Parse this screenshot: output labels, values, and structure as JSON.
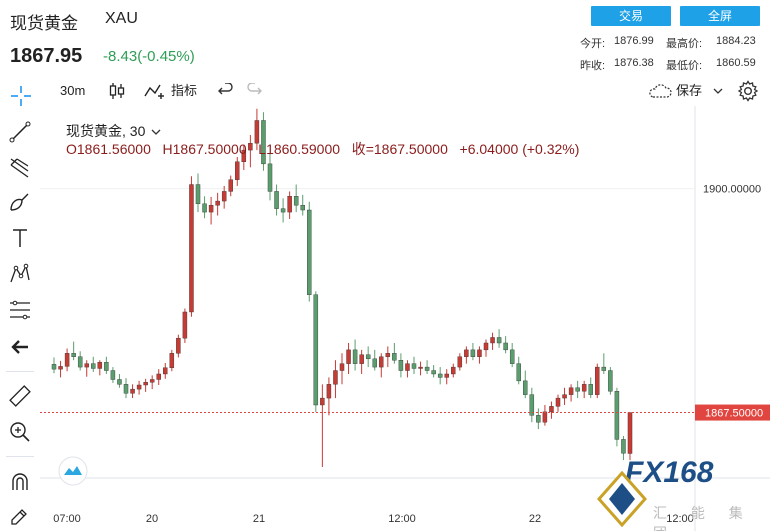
{
  "header": {
    "instrument_name": "现货黄金",
    "instrument_code": "XAU",
    "last_price": "1867.95",
    "change": "-8.43(-0.45%)",
    "trade_button": "交易",
    "fullscreen_button": "全屏",
    "stats": {
      "open_label": "今开:",
      "open": "1876.99",
      "high_label": "最高价:",
      "high": "1884.23",
      "prev_close_label": "昨收:",
      "prev_close": "1876.38",
      "low_label": "最低价:",
      "low": "1860.59"
    }
  },
  "toolbar": {
    "interval": "30m",
    "indicators_label": "指标",
    "save_label": "保存"
  },
  "chart_legend": {
    "title": "现货黄金, 30",
    "open": "O1861.56000",
    "high": "H1867.50000",
    "low": "L1860.59000",
    "close": "收=1867.50000",
    "change": "+6.04000 (+0.32%)"
  },
  "watermark": {
    "brand": "FX168",
    "chinese": "汇 能 集 团"
  },
  "colors": {
    "up": "#c83a34",
    "down": "#5b9e6e",
    "accent_button": "#1ea1e6",
    "price_label_bg": "#e0453f"
  },
  "chart_data": {
    "type": "candlestick",
    "instrument": "XAU",
    "timeframe": "30",
    "x_ticks": [
      "07:00",
      "20",
      "21",
      "12:00",
      "22",
      "12:00"
    ],
    "y_ticks": [
      1900.0
    ],
    "y_tick_labels": [
      "1900.00000"
    ],
    "current_price": 1867.5,
    "current_price_label": "1867.50000",
    "ylim": [
      1858,
      1912
    ],
    "candles": [
      [
        1874.5,
        1875.5,
        1873.2,
        1873.8
      ],
      [
        1873.8,
        1875.0,
        1872.6,
        1874.2
      ],
      [
        1874.2,
        1876.8,
        1873.5,
        1876.1
      ],
      [
        1876.1,
        1877.8,
        1875.1,
        1875.6
      ],
      [
        1875.6,
        1876.4,
        1873.6,
        1874.1
      ],
      [
        1874.1,
        1875.1,
        1872.7,
        1874.6
      ],
      [
        1874.6,
        1875.6,
        1873.4,
        1873.9
      ],
      [
        1873.9,
        1875.1,
        1872.9,
        1874.8
      ],
      [
        1874.8,
        1875.6,
        1873.1,
        1873.6
      ],
      [
        1873.6,
        1874.1,
        1871.8,
        1872.3
      ],
      [
        1872.3,
        1873.1,
        1871.1,
        1871.6
      ],
      [
        1871.6,
        1872.5,
        1869.6,
        1870.3
      ],
      [
        1870.3,
        1871.6,
        1869.6,
        1870.9
      ],
      [
        1870.9,
        1872.1,
        1870.1,
        1871.5
      ],
      [
        1871.5,
        1872.4,
        1870.5,
        1871.9
      ],
      [
        1871.9,
        1872.9,
        1870.9,
        1872.3
      ],
      [
        1872.3,
        1873.8,
        1871.5,
        1873.1
      ],
      [
        1873.1,
        1874.7,
        1872.4,
        1874.0
      ],
      [
        1874.0,
        1876.6,
        1873.5,
        1876.1
      ],
      [
        1876.1,
        1878.8,
        1875.5,
        1878.3
      ],
      [
        1878.3,
        1882.6,
        1877.6,
        1882.1
      ],
      [
        1882.1,
        1901.8,
        1881.4,
        1900.6
      ],
      [
        1900.6,
        1902.2,
        1896.6,
        1897.8
      ],
      [
        1897.8,
        1898.9,
        1895.7,
        1896.6
      ],
      [
        1896.6,
        1898.8,
        1894.8,
        1897.6
      ],
      [
        1897.6,
        1899.4,
        1896.1,
        1898.2
      ],
      [
        1898.2,
        1900.4,
        1897.1,
        1899.6
      ],
      [
        1899.6,
        1901.9,
        1898.9,
        1901.3
      ],
      [
        1901.3,
        1904.6,
        1900.4,
        1903.9
      ],
      [
        1903.9,
        1906.4,
        1902.7,
        1905.6
      ],
      [
        1905.6,
        1907.8,
        1903.1,
        1906.6
      ],
      [
        1906.6,
        1911.6,
        1905.6,
        1909.9
      ],
      [
        1909.9,
        1911.1,
        1902.6,
        1903.6
      ],
      [
        1903.6,
        1905.1,
        1898.3,
        1899.6
      ],
      [
        1899.6,
        1900.6,
        1896.1,
        1897.1
      ],
      [
        1897.1,
        1898.6,
        1895.1,
        1896.6
      ],
      [
        1896.6,
        1899.6,
        1895.6,
        1898.9
      ],
      [
        1898.9,
        1900.6,
        1896.6,
        1897.6
      ],
      [
        1897.6,
        1899.1,
        1896.1,
        1896.9
      ],
      [
        1896.9,
        1898.1,
        1883.6,
        1884.6
      ],
      [
        1884.6,
        1885.1,
        1867.6,
        1868.6
      ],
      [
        1868.6,
        1871.6,
        1859.6,
        1869.6
      ],
      [
        1869.6,
        1872.6,
        1867.1,
        1871.6
      ],
      [
        1871.6,
        1875.1,
        1869.6,
        1873.6
      ],
      [
        1873.6,
        1876.1,
        1871.6,
        1874.6
      ],
      [
        1874.6,
        1877.6,
        1873.1,
        1876.6
      ],
      [
        1876.6,
        1878.1,
        1873.6,
        1874.6
      ],
      [
        1874.6,
        1876.6,
        1873.1,
        1875.9
      ],
      [
        1875.9,
        1877.1,
        1874.1,
        1875.3
      ],
      [
        1875.3,
        1876.6,
        1873.6,
        1874.1
      ],
      [
        1874.1,
        1876.1,
        1872.6,
        1875.6
      ],
      [
        1875.6,
        1877.1,
        1874.1,
        1876.1
      ],
      [
        1876.1,
        1877.6,
        1874.6,
        1875.1
      ],
      [
        1875.1,
        1876.1,
        1872.6,
        1873.6
      ],
      [
        1873.6,
        1875.1,
        1872.6,
        1874.6
      ],
      [
        1874.6,
        1875.6,
        1873.1,
        1873.9
      ],
      [
        1873.9,
        1874.9,
        1872.9,
        1874.1
      ],
      [
        1874.1,
        1875.1,
        1873.1,
        1873.6
      ],
      [
        1873.6,
        1874.4,
        1872.6,
        1873.1
      ],
      [
        1873.1,
        1874.1,
        1871.6,
        1872.6
      ],
      [
        1872.6,
        1873.8,
        1871.6,
        1873.1
      ],
      [
        1873.1,
        1874.6,
        1872.6,
        1874.1
      ],
      [
        1874.1,
        1876.1,
        1873.6,
        1875.6
      ],
      [
        1875.6,
        1877.1,
        1874.6,
        1876.6
      ],
      [
        1876.6,
        1877.6,
        1875.1,
        1875.6
      ],
      [
        1875.6,
        1877.1,
        1874.6,
        1876.6
      ],
      [
        1876.6,
        1878.1,
        1875.6,
        1877.6
      ],
      [
        1877.6,
        1879.1,
        1876.6,
        1878.4
      ],
      [
        1878.4,
        1879.6,
        1876.9,
        1877.6
      ],
      [
        1877.6,
        1878.6,
        1876.1,
        1876.6
      ],
      [
        1876.6,
        1877.6,
        1874.1,
        1874.6
      ],
      [
        1874.6,
        1875.6,
        1871.6,
        1872.1
      ],
      [
        1872.1,
        1873.6,
        1869.6,
        1870.1
      ],
      [
        1870.1,
        1871.1,
        1866.1,
        1867.1
      ],
      [
        1867.1,
        1868.1,
        1865.1,
        1866.1
      ],
      [
        1866.1,
        1868.6,
        1865.6,
        1867.6
      ],
      [
        1867.6,
        1869.1,
        1866.6,
        1868.4
      ],
      [
        1868.4,
        1870.1,
        1867.6,
        1869.6
      ],
      [
        1869.6,
        1871.1,
        1868.6,
        1870.1
      ],
      [
        1870.1,
        1871.6,
        1869.1,
        1871.1
      ],
      [
        1871.1,
        1872.1,
        1869.6,
        1870.6
      ],
      [
        1870.6,
        1872.1,
        1869.6,
        1871.6
      ],
      [
        1871.6,
        1872.6,
        1869.6,
        1870.1
      ],
      [
        1870.1,
        1874.6,
        1869.6,
        1874.1
      ],
      [
        1874.1,
        1876.1,
        1873.1,
        1873.6
      ],
      [
        1873.6,
        1874.1,
        1870.1,
        1870.6
      ],
      [
        1870.6,
        1871.1,
        1862.6,
        1863.6
      ],
      [
        1863.6,
        1864.1,
        1860.6,
        1861.6
      ],
      [
        1861.56,
        1867.5,
        1860.59,
        1867.5
      ]
    ]
  }
}
